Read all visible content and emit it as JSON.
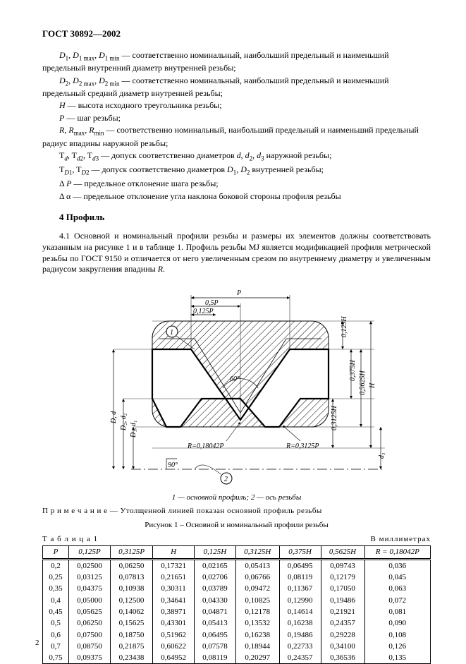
{
  "header": "ГОСТ 30892—2002",
  "defs": [
    "<i>D</i><sub>1</sub>, <i>D</i><sub>1 max</sub>, <i>D</i><sub>1 min</sub> — соответственно номинальный, наибольший предельный и наименьший предельный внутренний диаметр внутренней резьбы;",
    "<i>D</i><sub>2</sub>, <i>D</i><sub>2 max</sub>, <i>D</i><sub>2 min</sub> — соответственно номинальный, наибольший предельный и наименьший предельный средний диаметр внутренней резьбы;",
    "<i>H</i> — высота исходного треугольника резьбы;",
    "<i>P</i> — шаг резьбы;",
    "<i>R</i>, <i>R</i><sub>max</sub>, <i>R</i><sub>min</sub> — соответственно номинальный, наибольший предельный и наименьший предельный радиус впадины наружной резьбы;",
    "T<sub><i>d</i></sub>, T<sub><i>d</i>2</sub>, T<sub><i>d</i>3</sub> — допуск соответственно диаметров <i>d</i>, <i>d</i><sub>2</sub>, <i>d</i><sub>3</sub> наружной резьбы;",
    "T<sub><i>D</i>1</sub>, T<sub><i>D</i>2</sub> — допуск соответственно диаметров <i>D</i><sub>1</sub>, <i>D</i><sub>2</sub> внутренней резьбы;",
    "Δ <i>P</i> — предельное отклонение шага резьбы;",
    "Δ α — предельное отклонение угла наклона боковой стороны профиля резьбы"
  ],
  "section_title": "4 Профиль",
  "para41": "4.1 Основной и номинальный профили резьбы и размеры их элементов должны соответствовать указанным на рисунке 1 и в таблице 1. Профиль резьбы MJ является модификацией профиля метрической резьбы по ГОСТ 9150 и отличается от него увеличенным срезом по внутреннему диаметру и увеличенным радиусом закругления впадины <i>R</i>.",
  "diagram": {
    "labels": {
      "p": "P",
      "p05": "0,5P",
      "p0125": "0,125P",
      "ang60": "60°",
      "ang90": "90°",
      "r1": "R=0,18042P",
      "r2": "R=0,3125P",
      "h": "H",
      "h0125": "0,125H",
      "h0375": "0,375H",
      "h05625": "0,5625H",
      "h03125": "0,3125H",
      "d": "D, d",
      "d2": "D₂, d₂",
      "d1": "D₁, d₁",
      "d3": "d₃",
      "m1": "1",
      "m2": "2"
    },
    "colors": {
      "stroke": "#000",
      "hatch": "#000",
      "bg": "#fff"
    }
  },
  "caption_parts": "1 — основной профиль; 2 — ось резьбы",
  "note": "П р и м е ч а н и е  — Утолщенной линией показан основной профиль резьбы",
  "fig_caption": "Рисунок 1 – Основной и номинальный профили резьбы",
  "table_label": "Т а б л и ц а  1",
  "table_units": "В миллиметрах",
  "table": {
    "columns": [
      "P",
      "0,125P",
      "0,3125P",
      "H",
      "0,125H",
      "0,3125H",
      "0,375H",
      "0,5625H",
      "R = 0,18042P"
    ],
    "rows": [
      [
        "0,2",
        "0,02500",
        "0,06250",
        "0,17321",
        "0,02165",
        "0,05413",
        "0,06495",
        "0,09743",
        "0,036"
      ],
      [
        "0,25",
        "0,03125",
        "0,07813",
        "0,21651",
        "0,02706",
        "0,06766",
        "0,08119",
        "0,12179",
        "0,045"
      ],
      [
        "0,35",
        "0,04375",
        "0,10938",
        "0,30311",
        "0,03789",
        "0,09472",
        "0,11367",
        "0,17050",
        "0,063"
      ],
      [
        "0,4",
        "0,05000",
        "0,12500",
        "0,34641",
        "0,04330",
        "0,10825",
        "0,12990",
        "0,19486",
        "0,072"
      ],
      [
        "0,45",
        "0,05625",
        "0,14062",
        "0,38971",
        "0,04871",
        "0,12178",
        "0,14614",
        "0,21921",
        "0,081"
      ],
      [
        "0,5",
        "0,06250",
        "0,15625",
        "0,43301",
        "0,05413",
        "0,13532",
        "0,16238",
        "0,24357",
        "0,090"
      ],
      [
        "0,6",
        "0,07500",
        "0,18750",
        "0,51962",
        "0,06495",
        "0,16238",
        "0,19486",
        "0,29228",
        "0,108"
      ],
      [
        "0,7",
        "0,08750",
        "0,21875",
        "0,60622",
        "0,07578",
        "0,18944",
        "0,22733",
        "0,34100",
        "0,126"
      ],
      [
        "0,75",
        "0,09375",
        "0,23438",
        "0,64952",
        "0,08119",
        "0,20297",
        "0,24357",
        "0,36536",
        "0,135"
      ]
    ]
  },
  "page_number": "2"
}
